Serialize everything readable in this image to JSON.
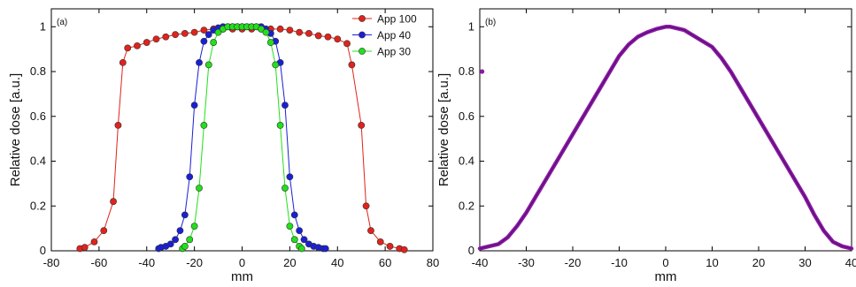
{
  "chart_data": [
    {
      "type": "line",
      "panel_label": "(a)",
      "xlabel": "mm",
      "ylabel": "Relative dose [a.u.]",
      "xlim": [
        -80,
        80
      ],
      "ylim": [
        0,
        1.08
      ],
      "xticks": [
        "-80",
        "-60",
        "-40",
        "-20",
        "0",
        "20",
        "40",
        "60",
        "80"
      ],
      "yticks": [
        "0",
        "0.2",
        "0.4",
        "0.6",
        "0.8",
        "1"
      ],
      "grid": false,
      "legend": "top-right",
      "series": [
        {
          "name": "App 100",
          "color": "#e0231b",
          "x": [
            -68,
            -66,
            -62,
            -58,
            -54,
            -52,
            -50,
            -48,
            -44,
            -40,
            -36,
            -32,
            -28,
            -24,
            -20,
            -16,
            -12,
            -8,
            -4,
            0,
            4,
            8,
            12,
            16,
            20,
            24,
            28,
            32,
            36,
            40,
            44,
            46,
            50,
            52,
            54,
            58,
            62,
            66,
            68
          ],
          "y": [
            0.01,
            0.015,
            0.04,
            0.09,
            0.22,
            0.56,
            0.84,
            0.905,
            0.915,
            0.93,
            0.945,
            0.955,
            0.965,
            0.97,
            0.975,
            0.985,
            0.99,
            0.99,
            0.99,
            0.99,
            0.99,
            0.99,
            0.99,
            0.99,
            0.985,
            0.975,
            0.97,
            0.96,
            0.955,
            0.945,
            0.925,
            0.83,
            0.56,
            0.2,
            0.09,
            0.04,
            0.02,
            0.01,
            0.005
          ]
        },
        {
          "name": "App 40",
          "color": "#1a1fd6",
          "x": [
            -35,
            -34,
            -32,
            -30,
            -28,
            -26,
            -24,
            -22,
            -20,
            -18,
            -16,
            -14,
            -12,
            -10,
            -8,
            -6,
            -4,
            -2,
            0,
            2,
            4,
            6,
            8,
            10,
            12,
            14,
            16,
            18,
            20,
            22,
            24,
            26,
            28,
            30,
            32,
            34,
            35
          ],
          "y": [
            0.01,
            0.015,
            0.02,
            0.03,
            0.05,
            0.09,
            0.16,
            0.33,
            0.65,
            0.84,
            0.935,
            0.965,
            0.985,
            0.995,
            1.0,
            1.0,
            1.0,
            1.0,
            1.0,
            1.0,
            1.0,
            1.0,
            1.0,
            0.99,
            0.97,
            0.935,
            0.84,
            0.65,
            0.33,
            0.16,
            0.09,
            0.05,
            0.03,
            0.02,
            0.015,
            0.01,
            0.01
          ]
        },
        {
          "name": "App 30",
          "color": "#22e01b",
          "x": [
            -25,
            -24,
            -22,
            -20,
            -18,
            -16,
            -14,
            -12,
            -10,
            -8,
            -6,
            -4,
            -2,
            0,
            2,
            4,
            6,
            8,
            10,
            12,
            14,
            16,
            18,
            20,
            22,
            24,
            25
          ],
          "y": [
            0.01,
            0.02,
            0.05,
            0.11,
            0.28,
            0.56,
            0.83,
            0.93,
            0.975,
            0.99,
            1.0,
            1.0,
            1.0,
            1.0,
            1.0,
            1.0,
            1.0,
            0.99,
            0.975,
            0.93,
            0.83,
            0.56,
            0.28,
            0.11,
            0.05,
            0.02,
            0.01
          ]
        }
      ]
    },
    {
      "type": "line",
      "panel_label": "(b)",
      "xlabel": "mm",
      "ylabel": "Relative dose [a.u.]",
      "xlim": [
        -40,
        40
      ],
      "ylim": [
        0,
        1.08
      ],
      "xticks": [
        "-40",
        "-30",
        "-20",
        "-10",
        "0",
        "10",
        "20",
        "30",
        "40"
      ],
      "yticks": [
        "0",
        "0.2",
        "0.4",
        "0.6",
        "0.8",
        "1"
      ],
      "grid": false,
      "color": "#8b1aa8",
      "outlier": {
        "x": -39.5,
        "y": 0.8
      },
      "x": [
        -40,
        -38,
        -36,
        -34,
        -32,
        -30,
        -28,
        -26,
        -24,
        -22,
        -20,
        -18,
        -16,
        -14,
        -12,
        -10,
        -8,
        -6,
        -4,
        -2,
        0,
        1,
        2,
        4,
        6,
        8,
        10,
        12,
        14,
        16,
        18,
        20,
        22,
        24,
        26,
        28,
        30,
        32,
        34,
        36,
        38,
        40
      ],
      "y": [
        0.01,
        0.02,
        0.03,
        0.06,
        0.11,
        0.17,
        0.24,
        0.31,
        0.38,
        0.45,
        0.52,
        0.59,
        0.66,
        0.73,
        0.8,
        0.87,
        0.92,
        0.955,
        0.975,
        0.99,
        1.0,
        1.0,
        0.995,
        0.985,
        0.96,
        0.935,
        0.91,
        0.86,
        0.8,
        0.73,
        0.66,
        0.59,
        0.52,
        0.45,
        0.38,
        0.31,
        0.24,
        0.16,
        0.09,
        0.04,
        0.02,
        0.01
      ]
    }
  ]
}
